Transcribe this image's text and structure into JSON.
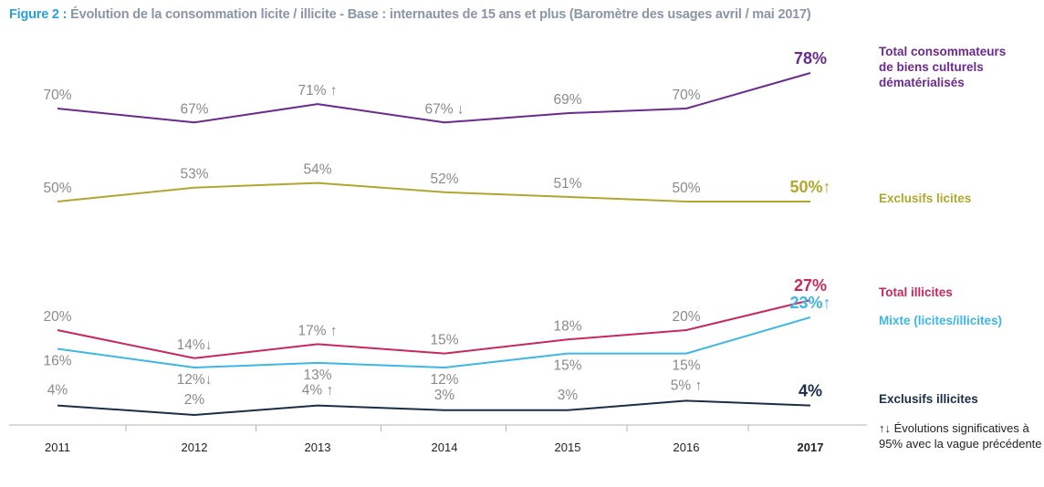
{
  "title_prefix": "Figure 2 :",
  "title_text": "Évolution de la consommation licite / illicite - Base : internautes de 15 ans et plus (Baromètre des usages avril / mai 2017)",
  "footnote": "↑↓ Évolutions significatives à 95% avec la vague précédente",
  "chart_data": {
    "type": "line",
    "categories": [
      "2011",
      "2012",
      "2013",
      "2014",
      "2015",
      "2016",
      "2017"
    ],
    "last_category_bold": true,
    "ylabel": "",
    "grid": false,
    "series": [
      {
        "name": "Total consommateurs de biens culturels dématérialisés",
        "color": "#6b2a8f",
        "values": [
          70,
          67,
          71,
          67,
          69,
          70,
          78
        ],
        "labels": [
          "70%",
          "67%",
          "71% ↑",
          "67% ↓",
          "69%",
          "70%",
          "78%"
        ]
      },
      {
        "name": "Exclusifs licites",
        "color": "#b0a72e",
        "values": [
          50,
          53,
          54,
          52,
          51,
          50,
          50
        ],
        "labels": [
          "50%",
          "53%",
          "54%",
          "52%",
          "51%",
          "50%",
          "50%↑"
        ]
      },
      {
        "name": "Total illicites",
        "color": "#c8285c",
        "values": [
          20,
          14,
          17,
          15,
          18,
          20,
          27
        ],
        "labels": [
          "20%",
          "14%↓",
          "17% ↑",
          "15%",
          "18%",
          "20%",
          "27%"
        ]
      },
      {
        "name": "Mixte (licites/illicites)",
        "color": "#3cb7e6",
        "values": [
          16,
          12,
          13,
          12,
          15,
          15,
          23
        ],
        "labels": [
          "16%",
          "12%↓",
          "13%",
          "12%",
          "15%",
          "15%",
          "23%↑"
        ]
      },
      {
        "name": "Exclusifs illicites",
        "color": "#1b2e47",
        "values": [
          4,
          2,
          4,
          3,
          3,
          5,
          4
        ],
        "labels": [
          "4%",
          "2%",
          "4% ↑",
          "3%",
          "3%",
          "5% ↑",
          "4%"
        ]
      }
    ]
  }
}
